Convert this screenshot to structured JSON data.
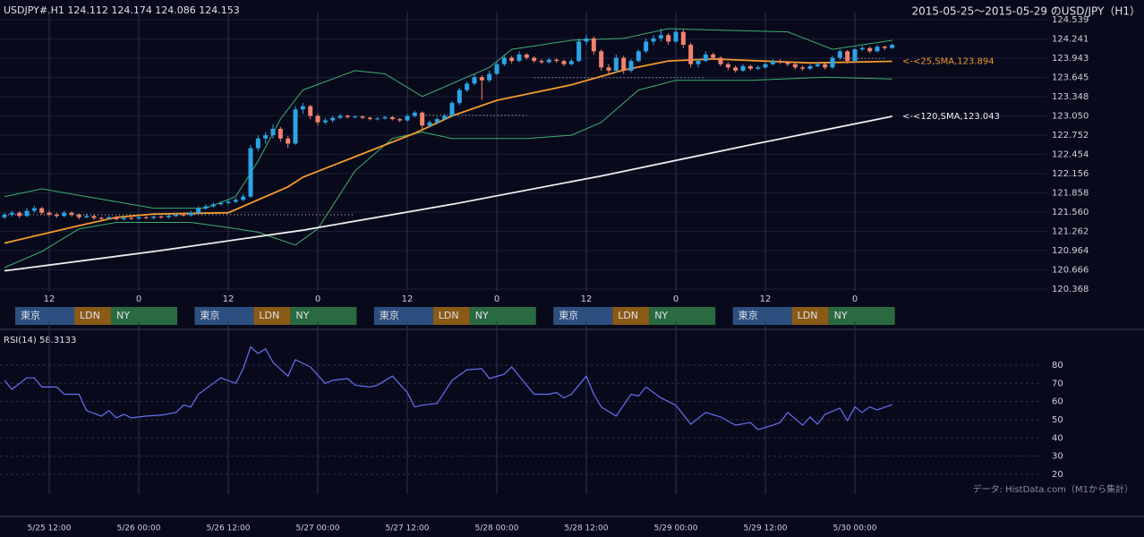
{
  "chart_data": [
    {
      "type": "candlestick",
      "header": "USDJPY#,H1 124.112 124.174 124.086 124.153",
      "title": "2015-05-25～2015-05-29 のUSD/JPY（H1）",
      "up_color": "#2ba5e6",
      "down_color": "#f2826f",
      "xlim": [
        -0.6,
        119.4
      ],
      "ylim": [
        120.368,
        124.539
      ],
      "yticks": [
        124.539,
        124.241,
        123.943,
        123.645,
        123.348,
        {
          "value": 123.05,
          "label": "123.050"
        },
        122.752,
        122.454,
        122.156,
        121.858,
        {
          "value": 121.56,
          "label": "121.560"
        },
        121.262,
        120.964,
        120.666,
        120.368
      ],
      "xticks": [
        {
          "value": 6,
          "label": "12"
        },
        {
          "value": 18,
          "label": "0"
        },
        {
          "value": 30,
          "label": "12"
        },
        {
          "value": 42,
          "label": "0"
        },
        {
          "value": 54,
          "label": "12"
        },
        {
          "value": 66,
          "label": "0"
        },
        {
          "value": 78,
          "label": "12"
        },
        {
          "value": 90,
          "label": "0"
        },
        {
          "value": 102,
          "label": "12"
        },
        {
          "value": 114,
          "label": "0"
        }
      ],
      "grid": true,
      "sessions": [
        "東京",
        "LDN",
        "NY"
      ],
      "candles": [
        [
          121.48,
          121.55,
          121.45,
          121.52
        ],
        [
          121.52,
          121.58,
          121.49,
          121.55
        ],
        [
          121.55,
          121.57,
          121.47,
          121.5
        ],
        [
          121.5,
          121.62,
          121.48,
          121.58
        ],
        [
          121.58,
          121.66,
          121.55,
          121.62
        ],
        [
          121.62,
          121.64,
          121.52,
          121.55
        ],
        [
          121.55,
          121.58,
          121.49,
          121.52
        ],
        [
          121.52,
          121.55,
          121.47,
          121.5
        ],
        [
          121.5,
          121.58,
          121.48,
          121.55
        ],
        [
          121.55,
          121.57,
          121.49,
          121.52
        ],
        [
          121.52,
          121.54,
          121.45,
          121.48
        ],
        [
          121.48,
          121.53,
          121.46,
          121.5
        ],
        [
          121.5,
          121.52,
          121.44,
          121.47
        ],
        [
          121.47,
          121.49,
          121.44,
          121.46
        ],
        [
          121.46,
          121.5,
          121.44,
          121.48
        ],
        [
          121.48,
          121.5,
          121.43,
          121.45
        ],
        [
          121.45,
          121.49,
          121.43,
          121.47
        ],
        [
          121.47,
          121.49,
          121.44,
          121.46
        ],
        [
          121.46,
          121.5,
          121.44,
          121.48
        ],
        [
          121.48,
          121.5,
          121.45,
          121.47
        ],
        [
          121.47,
          121.51,
          121.45,
          121.49
        ],
        [
          121.49,
          121.51,
          121.46,
          121.48
        ],
        [
          121.48,
          121.53,
          121.46,
          121.5
        ],
        [
          121.5,
          121.55,
          121.48,
          121.52
        ],
        [
          121.52,
          121.54,
          121.49,
          121.51
        ],
        [
          121.51,
          121.58,
          121.49,
          121.55
        ],
        [
          121.55,
          121.65,
          121.53,
          121.62
        ],
        [
          121.62,
          121.68,
          121.6,
          121.65
        ],
        [
          121.65,
          121.71,
          121.63,
          121.68
        ],
        [
          121.68,
          121.73,
          121.66,
          121.7
        ],
        [
          121.7,
          121.75,
          121.68,
          121.72
        ],
        [
          121.72,
          121.78,
          121.7,
          121.75
        ],
        [
          121.75,
          121.84,
          121.73,
          121.8
        ],
        [
          121.8,
          122.6,
          121.78,
          122.55
        ],
        [
          122.55,
          122.75,
          122.5,
          122.7
        ],
        [
          122.7,
          122.8,
          122.62,
          122.75
        ],
        [
          122.75,
          122.92,
          122.7,
          122.85
        ],
        [
          122.85,
          122.88,
          122.65,
          122.7
        ],
        [
          122.7,
          122.74,
          122.55,
          122.62
        ],
        [
          122.62,
          123.2,
          122.6,
          123.15
        ],
        [
          123.15,
          123.25,
          123.08,
          123.2
        ],
        [
          123.2,
          123.22,
          123.0,
          123.05
        ],
        [
          123.05,
          123.08,
          122.9,
          122.95
        ],
        [
          122.95,
          123.02,
          122.92,
          122.98
        ],
        [
          122.98,
          123.05,
          122.95,
          123.02
        ],
        [
          123.02,
          123.08,
          123.0,
          123.05
        ],
        [
          123.05,
          123.07,
          123.01,
          123.03
        ],
        [
          123.03,
          123.06,
          123.01,
          123.04
        ],
        [
          123.04,
          123.06,
          123.0,
          123.02
        ],
        [
          123.02,
          123.04,
          122.98,
          123.0
        ],
        [
          123.0,
          123.03,
          122.98,
          123.01
        ],
        [
          123.01,
          123.05,
          122.99,
          123.03
        ],
        [
          123.03,
          123.05,
          122.98,
          123.0
        ],
        [
          123.0,
          123.02,
          122.95,
          122.98
        ],
        [
          122.98,
          123.08,
          122.96,
          123.05
        ],
        [
          123.05,
          123.13,
          123.02,
          123.1
        ],
        [
          123.1,
          123.12,
          122.85,
          122.9
        ],
        [
          122.9,
          122.98,
          122.87,
          122.95
        ],
        [
          122.95,
          123.03,
          122.92,
          123.0
        ],
        [
          123.0,
          123.08,
          122.98,
          123.05
        ],
        [
          123.05,
          123.28,
          123.03,
          123.25
        ],
        [
          123.25,
          123.48,
          123.22,
          123.45
        ],
        [
          123.45,
          123.58,
          123.42,
          123.55
        ],
        [
          123.55,
          123.7,
          123.52,
          123.65
        ],
        [
          123.65,
          123.68,
          123.3,
          123.6
        ],
        [
          123.6,
          123.75,
          123.57,
          123.7
        ],
        [
          123.7,
          123.9,
          123.68,
          123.85
        ],
        [
          123.85,
          124.0,
          123.82,
          123.95
        ],
        [
          123.95,
          123.98,
          123.86,
          123.9
        ],
        [
          123.9,
          124.05,
          123.88,
          124.0
        ],
        [
          124.0,
          124.02,
          123.92,
          123.95
        ],
        [
          123.95,
          123.97,
          123.87,
          123.9
        ],
        [
          123.9,
          123.93,
          123.85,
          123.88
        ],
        [
          123.88,
          123.95,
          123.86,
          123.92
        ],
        [
          123.92,
          123.94,
          123.87,
          123.9
        ],
        [
          123.9,
          123.92,
          123.82,
          123.85
        ],
        [
          123.85,
          123.93,
          123.83,
          123.9
        ],
        [
          123.9,
          124.25,
          123.88,
          124.2
        ],
        [
          124.2,
          124.3,
          124.15,
          124.25
        ],
        [
          124.25,
          124.28,
          124.0,
          124.05
        ],
        [
          124.05,
          124.08,
          123.75,
          123.8
        ],
        [
          123.8,
          123.85,
          123.7,
          123.75
        ],
        [
          123.75,
          124.0,
          123.72,
          123.95
        ],
        [
          123.95,
          123.98,
          123.7,
          123.75
        ],
        [
          123.75,
          123.93,
          123.72,
          123.9
        ],
        [
          123.9,
          124.08,
          123.88,
          124.05
        ],
        [
          124.05,
          124.25,
          124.02,
          124.2
        ],
        [
          124.2,
          124.3,
          124.15,
          124.25
        ],
        [
          124.25,
          124.4,
          124.2,
          124.3
        ],
        [
          124.3,
          124.33,
          124.15,
          124.2
        ],
        [
          124.2,
          124.4,
          124.18,
          124.35
        ],
        [
          124.35,
          124.38,
          124.1,
          124.15
        ],
        [
          124.15,
          124.18,
          123.8,
          123.85
        ],
        [
          123.85,
          123.93,
          123.8,
          123.9
        ],
        [
          123.9,
          124.05,
          123.88,
          124.0
        ],
        [
          124.0,
          124.03,
          123.92,
          123.95
        ],
        [
          123.95,
          123.97,
          123.82,
          123.85
        ],
        [
          123.85,
          123.88,
          123.76,
          123.8
        ],
        [
          123.8,
          123.83,
          123.72,
          123.75
        ],
        [
          123.75,
          123.85,
          123.73,
          123.82
        ],
        [
          123.82,
          123.84,
          123.75,
          123.78
        ],
        [
          123.78,
          123.83,
          123.76,
          123.8
        ],
        [
          123.8,
          123.88,
          123.78,
          123.85
        ],
        [
          123.85,
          123.93,
          123.83,
          123.9
        ],
        [
          123.9,
          123.93,
          123.85,
          123.88
        ],
        [
          123.88,
          123.9,
          123.82,
          123.85
        ],
        [
          123.85,
          123.87,
          123.77,
          123.8
        ],
        [
          123.8,
          123.83,
          123.75,
          123.78
        ],
        [
          123.78,
          123.85,
          123.76,
          123.82
        ],
        [
          123.82,
          123.88,
          123.8,
          123.85
        ],
        [
          123.85,
          123.87,
          123.77,
          123.8
        ],
        [
          123.8,
          123.98,
          123.78,
          123.95
        ],
        [
          123.95,
          124.08,
          123.92,
          124.05
        ],
        [
          124.05,
          124.07,
          123.86,
          123.9
        ],
        [
          123.9,
          124.1,
          123.88,
          124.08
        ],
        [
          124.08,
          124.13,
          124.05,
          124.1
        ],
        [
          124.1,
          124.12,
          124.02,
          124.05
        ],
        [
          124.05,
          124.15,
          124.03,
          124.12
        ],
        [
          124.12,
          124.14,
          124.07,
          124.1
        ],
        [
          124.1,
          124.17,
          124.09,
          124.15
        ]
      ],
      "levels": [
        {
          "value": 121.52,
          "from": 0,
          "to": 47
        },
        {
          "value": 123.06,
          "from": 56,
          "to": 70
        },
        {
          "value": 123.64,
          "from": 71,
          "to": 94
        },
        {
          "value": 123.94,
          "from": 112,
          "to": 118
        }
      ],
      "series": [
        {
          "color": "#3fae6e",
          "x": [
            0,
            5,
            12,
            20,
            27,
            31,
            34,
            37,
            40,
            47,
            51,
            56,
            59,
            65,
            68,
            76,
            83,
            89,
            95,
            105,
            111,
            119
          ],
          "values": [
            121.8,
            121.92,
            121.78,
            121.62,
            121.62,
            121.8,
            122.35,
            123.0,
            123.45,
            123.75,
            123.7,
            123.35,
            123.5,
            123.8,
            124.08,
            124.22,
            124.25,
            124.4,
            124.38,
            124.35,
            124.08,
            124.22
          ]
        },
        {
          "color": "#3fae6e",
          "x": [
            0,
            5,
            10,
            15,
            25,
            30,
            34,
            39,
            42,
            47,
            52,
            56,
            60,
            70,
            76,
            80,
            85,
            90,
            100,
            110,
            119
          ],
          "values": [
            120.7,
            120.95,
            121.3,
            121.4,
            121.4,
            121.32,
            121.25,
            121.05,
            121.3,
            122.2,
            122.7,
            122.8,
            122.7,
            122.7,
            122.75,
            122.95,
            123.45,
            123.6,
            123.6,
            123.65,
            123.62
          ]
        },
        {
          "color": "#eeeeee",
          "label": "<-<120,SMA,123.043",
          "x": [
            0,
            20,
            40,
            60,
            80,
            100,
            119
          ],
          "values": [
            120.65,
            120.95,
            121.28,
            121.68,
            122.12,
            122.6,
            123.043
          ]
        },
        {
          "color": "#f29a2e",
          "label": "<-<25,SMA,123.894",
          "x": [
            0,
            10,
            15,
            20,
            30,
            38,
            40,
            55,
            60,
            66,
            76,
            83,
            89,
            95,
            108,
            119
          ],
          "values": [
            121.08,
            121.35,
            121.48,
            121.53,
            121.55,
            121.95,
            122.1,
            122.78,
            123.05,
            123.29,
            123.53,
            123.76,
            123.9,
            123.93,
            123.87,
            123.894
          ]
        }
      ]
    },
    {
      "type": "line",
      "label": "RSI(14) 58.3133",
      "note": "データ: HistData.com（M1から集計）",
      "color": "#6670f0",
      "xlim": [
        -0.6,
        119.4
      ],
      "ylim": [
        10,
        100
      ],
      "yticks": [
        20,
        30,
        40,
        50,
        60,
        70,
        80
      ],
      "grid": true,
      "xticks": [
        {
          "value": 6,
          "label": "5/25 12:00"
        },
        {
          "value": 18,
          "label": "5/26 00:00"
        },
        {
          "value": 30,
          "label": "5/26 12:00"
        },
        {
          "value": 42,
          "label": "5/27 00:00"
        },
        {
          "value": 54,
          "label": "5/27 12:00"
        },
        {
          "value": 66,
          "label": "5/28 00:00"
        },
        {
          "value": 78,
          "label": "5/28 12:00"
        },
        {
          "value": 90,
          "label": "5/29 00:00"
        },
        {
          "value": 102,
          "label": "5/29 12:00"
        },
        {
          "value": 114,
          "label": "5/30 00:00"
        }
      ],
      "x": [
        0,
        1,
        3,
        4,
        5,
        7,
        8,
        10,
        11,
        13,
        14,
        15,
        16,
        17,
        19,
        21,
        23,
        24,
        25,
        26,
        28,
        29,
        31,
        32,
        33,
        34,
        35,
        36,
        38,
        39,
        41,
        43,
        44,
        46,
        47,
        49,
        50,
        52,
        54,
        55,
        56,
        58,
        60,
        62,
        64,
        65,
        67,
        68,
        69,
        71,
        73,
        74,
        75,
        76,
        78,
        79,
        80,
        82,
        84,
        85,
        86,
        88,
        90,
        92,
        94,
        96,
        98,
        100,
        101,
        103,
        104,
        105,
        107,
        108,
        109,
        110,
        112,
        113,
        114,
        115,
        116,
        117,
        119
      ],
      "values": [
        71.6,
        66.7,
        73,
        73,
        68,
        68,
        64,
        64,
        55,
        52,
        55,
        51,
        53,
        51,
        52,
        52.5,
        54,
        58,
        57,
        64,
        70,
        73,
        70,
        78,
        90,
        86.4,
        89,
        81.5,
        74,
        83,
        79,
        70,
        71.6,
        72.6,
        69,
        68,
        69,
        74,
        65,
        57,
        58,
        59,
        71.6,
        77.5,
        78,
        72.6,
        75,
        79,
        74,
        64,
        64,
        65,
        62,
        64,
        74,
        64,
        57,
        52,
        64,
        63,
        68,
        62,
        58,
        47.5,
        54,
        51.5,
        47,
        48.5,
        44.6,
        47,
        48.5,
        54,
        47,
        51.5,
        47.5,
        53,
        56.4,
        49.5,
        57,
        54,
        57,
        55.4,
        58.3
      ]
    }
  ]
}
